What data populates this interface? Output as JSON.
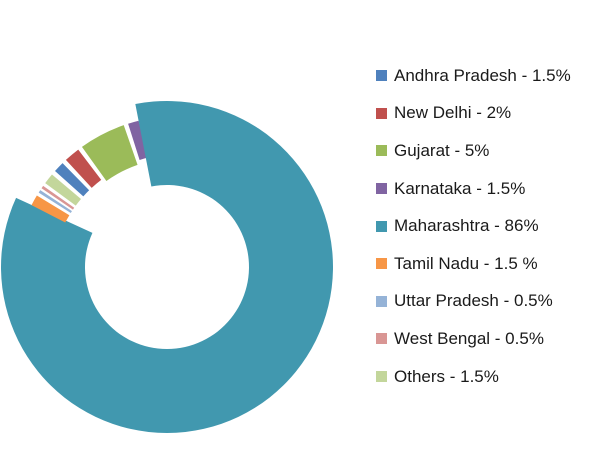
{
  "chart_data": {
    "type": "pie",
    "variant": "exploded-donut",
    "legend_position": "right",
    "series": [
      {
        "name": "Andhra Pradesh",
        "label": "Andhra Pradesh - 1.5%",
        "value": 1.5,
        "color": "#4f81bd"
      },
      {
        "name": "New Delhi",
        "label": "New Delhi - 2%",
        "value": 2,
        "color": "#c0504d"
      },
      {
        "name": "Gujarat",
        "label": "Gujarat - 5%",
        "value": 5,
        "color": "#9bbb59"
      },
      {
        "name": "Karnataka",
        "label": "Karnataka - 1.5%",
        "value": 1.5,
        "color": "#8064a2"
      },
      {
        "name": "Maharashtra",
        "label": "Maharashtra - 86%",
        "value": 86,
        "color": "#4198af"
      },
      {
        "name": "Tamil Nadu",
        "label": "Tamil Nadu - 1.5 %",
        "value": 1.5,
        "color": "#f79646"
      },
      {
        "name": "Uttar Pradesh",
        "label": "Uttar Pradesh - 0.5%",
        "value": 0.5,
        "color": "#95b3d7"
      },
      {
        "name": "West Bengal",
        "label": "West Bengal - 0.5%",
        "value": 0.5,
        "color": "#d99694"
      },
      {
        "name": "Others",
        "label": "Others - 1.5%",
        "value": 1.5,
        "color": "#c3d69b"
      }
    ]
  }
}
